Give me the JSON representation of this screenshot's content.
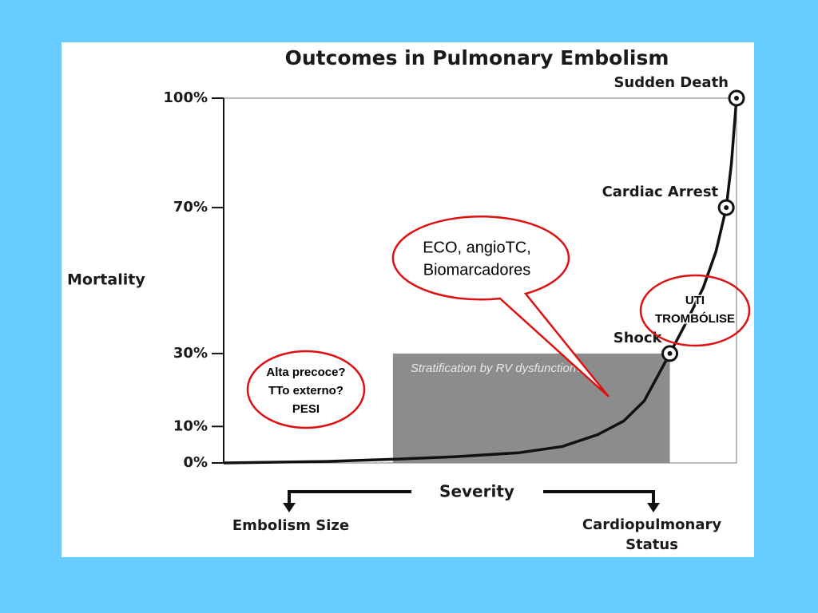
{
  "chart_data": {
    "type": "line",
    "title": "Outcomes in Pulmonary Embolism",
    "y_label": "Mortality",
    "x_label": "Severity",
    "x_left_label": "Embolism Size",
    "x_right_label": [
      "Cardiopulmonary",
      "Status"
    ],
    "xlim": [
      0,
      100
    ],
    "ylim": [
      0,
      100
    ],
    "yticks": [
      {
        "value": 0,
        "label": "0%"
      },
      {
        "value": 10,
        "label": "10%"
      },
      {
        "value": 30,
        "label": "30%"
      },
      {
        "value": 70,
        "label": "70%"
      },
      {
        "value": 100,
        "label": "100%"
      }
    ],
    "x": [
      0,
      20,
      33,
      45,
      57.6,
      66,
      73,
      78,
      82,
      87,
      90,
      93.5,
      96,
      98,
      99,
      100
    ],
    "series": [
      {
        "color": "#111111",
        "values": [
          0,
          0.4,
          1,
          1.7,
          2.8,
          4.5,
          7.8,
          11.5,
          17,
          30,
          38,
          48,
          58,
          70,
          82,
          100
        ]
      }
    ],
    "markers": [
      {
        "label": "Shock",
        "x": 87,
        "y": 30
      },
      {
        "label": "Cardiac Arrest",
        "x": 98,
        "y": 70
      },
      {
        "label": "Sudden Death",
        "x": 100,
        "y": 100
      }
    ],
    "shaded_region": {
      "label": "Stratification by RV dysfunction?",
      "x": [
        33,
        87
      ],
      "y": [
        0,
        30
      ],
      "color": "#8c8c8c"
    },
    "callouts": [
      {
        "lines": [
          "ECO, angioTC,",
          "Biomarcadores"
        ]
      },
      {
        "lines": [
          "UTI",
          "TROMBÓLISE"
        ]
      },
      {
        "lines": [
          "Alta precoce?",
          "TTo externo?",
          "PESI"
        ]
      }
    ]
  }
}
